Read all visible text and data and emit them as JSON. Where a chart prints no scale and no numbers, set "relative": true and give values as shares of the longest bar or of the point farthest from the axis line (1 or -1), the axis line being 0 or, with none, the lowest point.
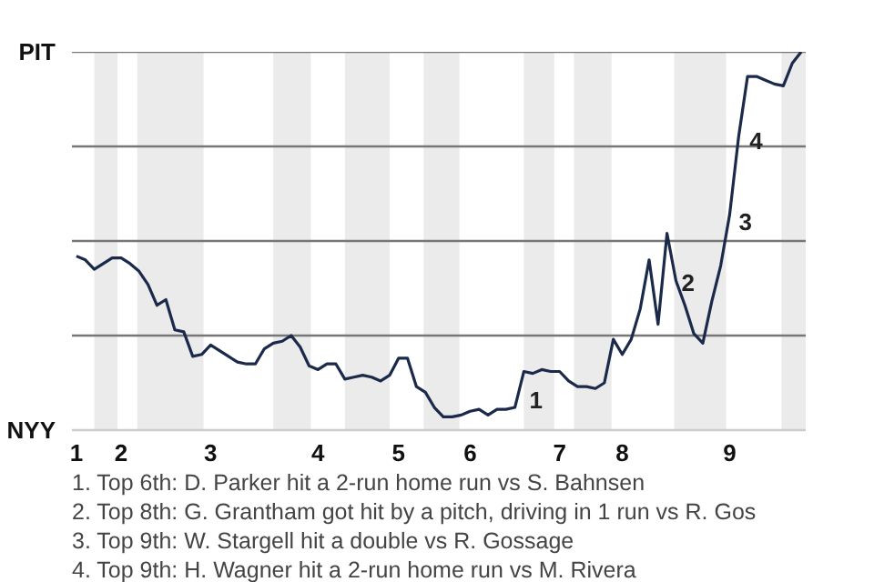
{
  "chart_data": {
    "type": "line",
    "relative": true,
    "categories": [
      "1",
      null,
      null,
      null,
      null,
      "2",
      null,
      null,
      null,
      null,
      null,
      null,
      null,
      null,
      null,
      "3",
      null,
      null,
      null,
      null,
      null,
      null,
      null,
      null,
      null,
      null,
      null,
      "4",
      null,
      null,
      null,
      null,
      null,
      null,
      null,
      null,
      "5",
      null,
      null,
      null,
      null,
      null,
      null,
      null,
      "6",
      null,
      null,
      null,
      null,
      null,
      null,
      null,
      null,
      null,
      "7",
      null,
      null,
      null,
      null,
      null,
      null,
      "8",
      null,
      null,
      null,
      null,
      null,
      null,
      null,
      null,
      null,
      null,
      null,
      "9",
      null,
      null,
      null,
      null,
      null,
      null,
      null,
      null
    ],
    "series": [
      {
        "color": "#1b2a4a",
        "values": [
          0.46,
          0.45,
          0.425,
          0.44,
          0.455,
          0.455,
          0.44,
          0.42,
          0.385,
          0.33,
          0.345,
          0.265,
          0.26,
          0.195,
          0.2,
          0.225,
          0.21,
          0.195,
          0.18,
          0.175,
          0.175,
          0.215,
          0.23,
          0.235,
          0.25,
          0.22,
          0.17,
          0.16,
          0.175,
          0.175,
          0.135,
          0.14,
          0.145,
          0.14,
          0.13,
          0.145,
          0.19,
          0.19,
          0.115,
          0.1,
          0.06,
          0.035,
          0.035,
          0.04,
          0.05,
          0.055,
          0.04,
          0.055,
          0.055,
          0.06,
          0.155,
          0.15,
          0.16,
          0.155,
          0.155,
          0.13,
          0.115,
          0.115,
          0.11,
          0.125,
          0.24,
          0.2,
          0.24,
          0.32,
          0.45,
          0.28,
          0.52,
          0.395,
          0.33,
          0.255,
          0.23,
          0.34,
          0.435,
          0.57,
          0.775,
          0.935,
          0.935,
          0.925,
          0.915,
          0.91,
          0.97,
          1
        ],
        "name": null
      }
    ],
    "marker": "none",
    "line_style": "solid",
    "ref_lines": [
      {
        "axis": "y",
        "value": 0.25,
        "label": null,
        "color": "#777777"
      },
      {
        "axis": "y",
        "value": 0.5,
        "label": null,
        "color": "#777777"
      },
      {
        "axis": "y",
        "value": 0.75,
        "label": null,
        "color": "#777777"
      },
      {
        "axis": "y",
        "value": 1,
        "label": null,
        "color": "#777777"
      }
    ],
    "annotations": [
      "PIT",
      "NYY",
      "1",
      "2",
      "3",
      "4",
      "1. Top 6th: D. Parker hit a 2-run home run vs S. Bahnsen",
      "2. Top 8th: G. Grantham got hit by a pitch, driving in 1 run vs R. Gos",
      "3. Top 9th: W. Stargell hit a double vs R. Gossage",
      "4. Top 9th: H. Wagner hit a 2-run home run vs M. Rivera"
    ]
  }
}
